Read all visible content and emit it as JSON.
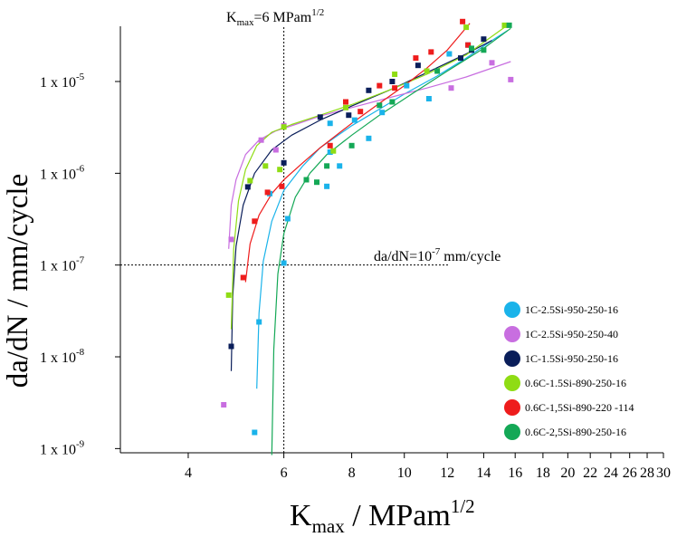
{
  "chart_data": {
    "type": "scatter",
    "x_scale": "log",
    "y_scale": "log",
    "xlim": [
      3.0,
      30.0
    ],
    "ylim": [
      9e-10,
      4e-05
    ],
    "xlabel": {
      "main": "K",
      "sub": "max",
      "rest": " / MPam",
      "sup": "1/2"
    },
    "ylabel": "da/dN / mm/cycle",
    "x_ticks": [
      4,
      6,
      8,
      10,
      12,
      14,
      16,
      18,
      20,
      22,
      24,
      26,
      28,
      30
    ],
    "x_tick_labels": [
      "4",
      "6",
      "8",
      "10",
      "12",
      "14",
      "16",
      "18",
      "20",
      "22",
      "24",
      "26",
      "28",
      "30"
    ],
    "y_ticks": [
      1e-09,
      1e-08,
      1e-07,
      1e-06,
      1e-05
    ],
    "y_tick_labels": [
      {
        "base": "1 x 10",
        "exp": "-9"
      },
      {
        "base": "1 x 10",
        "exp": "-8"
      },
      {
        "base": "1 x 10",
        "exp": "-7"
      },
      {
        "base": "1 x 10",
        "exp": "-6"
      },
      {
        "base": "1 x 10",
        "exp": "-5"
      }
    ],
    "reference_lines": {
      "vertical": {
        "x": 6,
        "label": {
          "main": "K",
          "sub": "max",
          "rest": "=6 MPam",
          "sup": "1/2"
        }
      },
      "horizontal": {
        "y": 1e-07,
        "label": {
          "main": "da/dN=10",
          "sup": "-7",
          "rest": " mm/cycle"
        }
      }
    },
    "legend_position": "right",
    "series": [
      {
        "name": "1C-2.5Si-950-250-16",
        "color": "#1ab3ea",
        "x": [
          5.3,
          5.4,
          5.65,
          6.0,
          6.1,
          7.2,
          7.3,
          7.3,
          7.6,
          8.1,
          8.6,
          9.1,
          10.1,
          11.1,
          12.1,
          13.1
        ],
        "y": [
          1.5e-09,
          2.4e-08,
          6e-07,
          1.05e-07,
          3.2e-07,
          7.2e-07,
          1.7e-06,
          3.5e-06,
          1.2e-06,
          3.8e-06,
          2.4e-06,
          4.6e-06,
          9e-06,
          6.5e-06,
          2e-05,
          2.5e-05
        ],
        "fit_x": [
          5.35,
          5.4,
          5.5,
          5.7,
          6.0,
          6.5,
          7.0,
          8.0,
          9.0,
          10.0,
          11.5,
          13.0,
          14.5,
          15.5
        ],
        "fit_y": [
          4.5e-09,
          3e-08,
          1.1e-07,
          3e-07,
          6.5e-07,
          1.2e-06,
          1.9e-06,
          3.3e-06,
          5e-06,
          7.3e-06,
          1.15e-05,
          1.8e-05,
          2.8e-05,
          3.6e-05
        ]
      },
      {
        "name": "1C-2.5Si-950-250-40",
        "color": "#c86ee0",
        "x": [
          4.65,
          4.8,
          5.45,
          5.8,
          6.0,
          12.2,
          14.5,
          15.7
        ],
        "y": [
          3e-09,
          1.9e-07,
          2.3e-06,
          1.8e-06,
          3.3e-06,
          8.5e-06,
          1.6e-05,
          1.05e-05
        ],
        "fit_x": [
          4.75,
          4.8,
          4.9,
          5.1,
          5.4,
          5.8,
          6.3,
          7.0,
          8.0,
          9.5,
          11.0,
          13.0,
          15.7
        ],
        "fit_y": [
          1.5e-07,
          4.5e-07,
          8.5e-07,
          1.6e-06,
          2.3e-06,
          2.9e-06,
          3.4e-06,
          4.2e-06,
          5.2e-06,
          6.8e-06,
          8.5e-06,
          1.12e-05,
          1.65e-05
        ]
      },
      {
        "name": "1C-1.5Si-950-250-16",
        "color": "#0a1e5a",
        "x": [
          4.8,
          5.15,
          6.0,
          7.0,
          7.9,
          8.6,
          9.5,
          10.6,
          12.7,
          13.3,
          14.0
        ],
        "y": [
          1.3e-08,
          7.1e-07,
          1.3e-06,
          4.1e-06,
          4.3e-06,
          8e-06,
          1e-05,
          1.5e-05,
          1.8e-05,
          2.2e-05,
          2.9e-05
        ],
        "fit_x": [
          4.8,
          4.83,
          4.9,
          5.05,
          5.3,
          5.7,
          6.2,
          7.0,
          8.0,
          9.5,
          11.0,
          13.0,
          14.5
        ],
        "fit_y": [
          7e-09,
          4.5e-08,
          1.6e-07,
          4.5e-07,
          1e-06,
          1.8e-06,
          2.6e-06,
          3.8e-06,
          5.4e-06,
          8.3e-06,
          1.25e-05,
          2e-05,
          2.8e-05
        ]
      },
      {
        "name": "0.6C-1.5Si-890-250-16",
        "color": "#8fdc14",
        "x": [
          4.75,
          5.2,
          5.55,
          5.9,
          6.0,
          7.4,
          7.8,
          9.6,
          11.0,
          13.0,
          15.3
        ],
        "y": [
          4.7e-08,
          8.3e-07,
          1.2e-06,
          1.1e-06,
          3.2e-06,
          1.75e-06,
          5.2e-06,
          1.2e-05,
          1.3e-05,
          3.9e-05,
          4.1e-05
        ],
        "fit_x": [
          4.8,
          4.85,
          4.95,
          5.1,
          5.35,
          5.7,
          6.2,
          7.0,
          8.0,
          9.5,
          11.0,
          13.0,
          15.3
        ],
        "fit_y": [
          2e-08,
          1.5e-07,
          5e-07,
          1.1e-06,
          2e-06,
          2.8e-06,
          3.4e-06,
          4.3e-06,
          5.6e-06,
          8.3e-06,
          1.2e-05,
          1.95e-05,
          3.9e-05
        ]
      },
      {
        "name": "0.6C-1,5Si-890-220 -114",
        "color": "#ee1c1c",
        "x": [
          5.05,
          5.3,
          5.6,
          5.95,
          7.3,
          7.8,
          8.3,
          9.0,
          9.6,
          10.5,
          11.2,
          12.8,
          13.1
        ],
        "y": [
          7.3e-08,
          3e-07,
          6.2e-07,
          7.2e-07,
          2e-06,
          6e-06,
          4.7e-06,
          9e-06,
          8.5e-06,
          1.8e-05,
          2.1e-05,
          4.5e-05,
          2.5e-05
        ],
        "fit_x": [
          5.1,
          5.2,
          5.4,
          5.7,
          6.0,
          6.5,
          7.0,
          8.0,
          9.0,
          10.0,
          11.0,
          12.0,
          13.2
        ],
        "fit_y": [
          6.5e-08,
          1.7e-07,
          3.5e-07,
          6e-07,
          8.5e-07,
          1.3e-06,
          1.9e-06,
          3.5e-06,
          5.8e-06,
          9e-06,
          1.4e-05,
          2.2e-05,
          4.3e-05
        ]
      },
      {
        "name": "0.6C-2,5Si-890-250-16",
        "color": "#14a856",
        "x": [
          6.6,
          6.9,
          7.2,
          8.0,
          9.0,
          9.5,
          11.5,
          13.3,
          14.0,
          15.6
        ],
        "y": [
          8.5e-07,
          8e-07,
          1.2e-06,
          2e-06,
          5.5e-06,
          6e-06,
          1.3e-05,
          2.3e-05,
          2.2e-05,
          4.1e-05
        ],
        "fit_x": [
          5.7,
          5.75,
          5.85,
          6.0,
          6.3,
          6.7,
          7.2,
          8.0,
          9.0,
          10.5,
          12.0,
          14.0,
          15.7
        ],
        "fit_y": [
          8.5e-10,
          1.2e-08,
          8e-08,
          2.2e-07,
          5.5e-07,
          1e-06,
          1.6e-06,
          2.6e-06,
          4.3e-06,
          7.8e-06,
          1.3e-05,
          2.3e-05,
          3.8e-05
        ]
      }
    ]
  }
}
